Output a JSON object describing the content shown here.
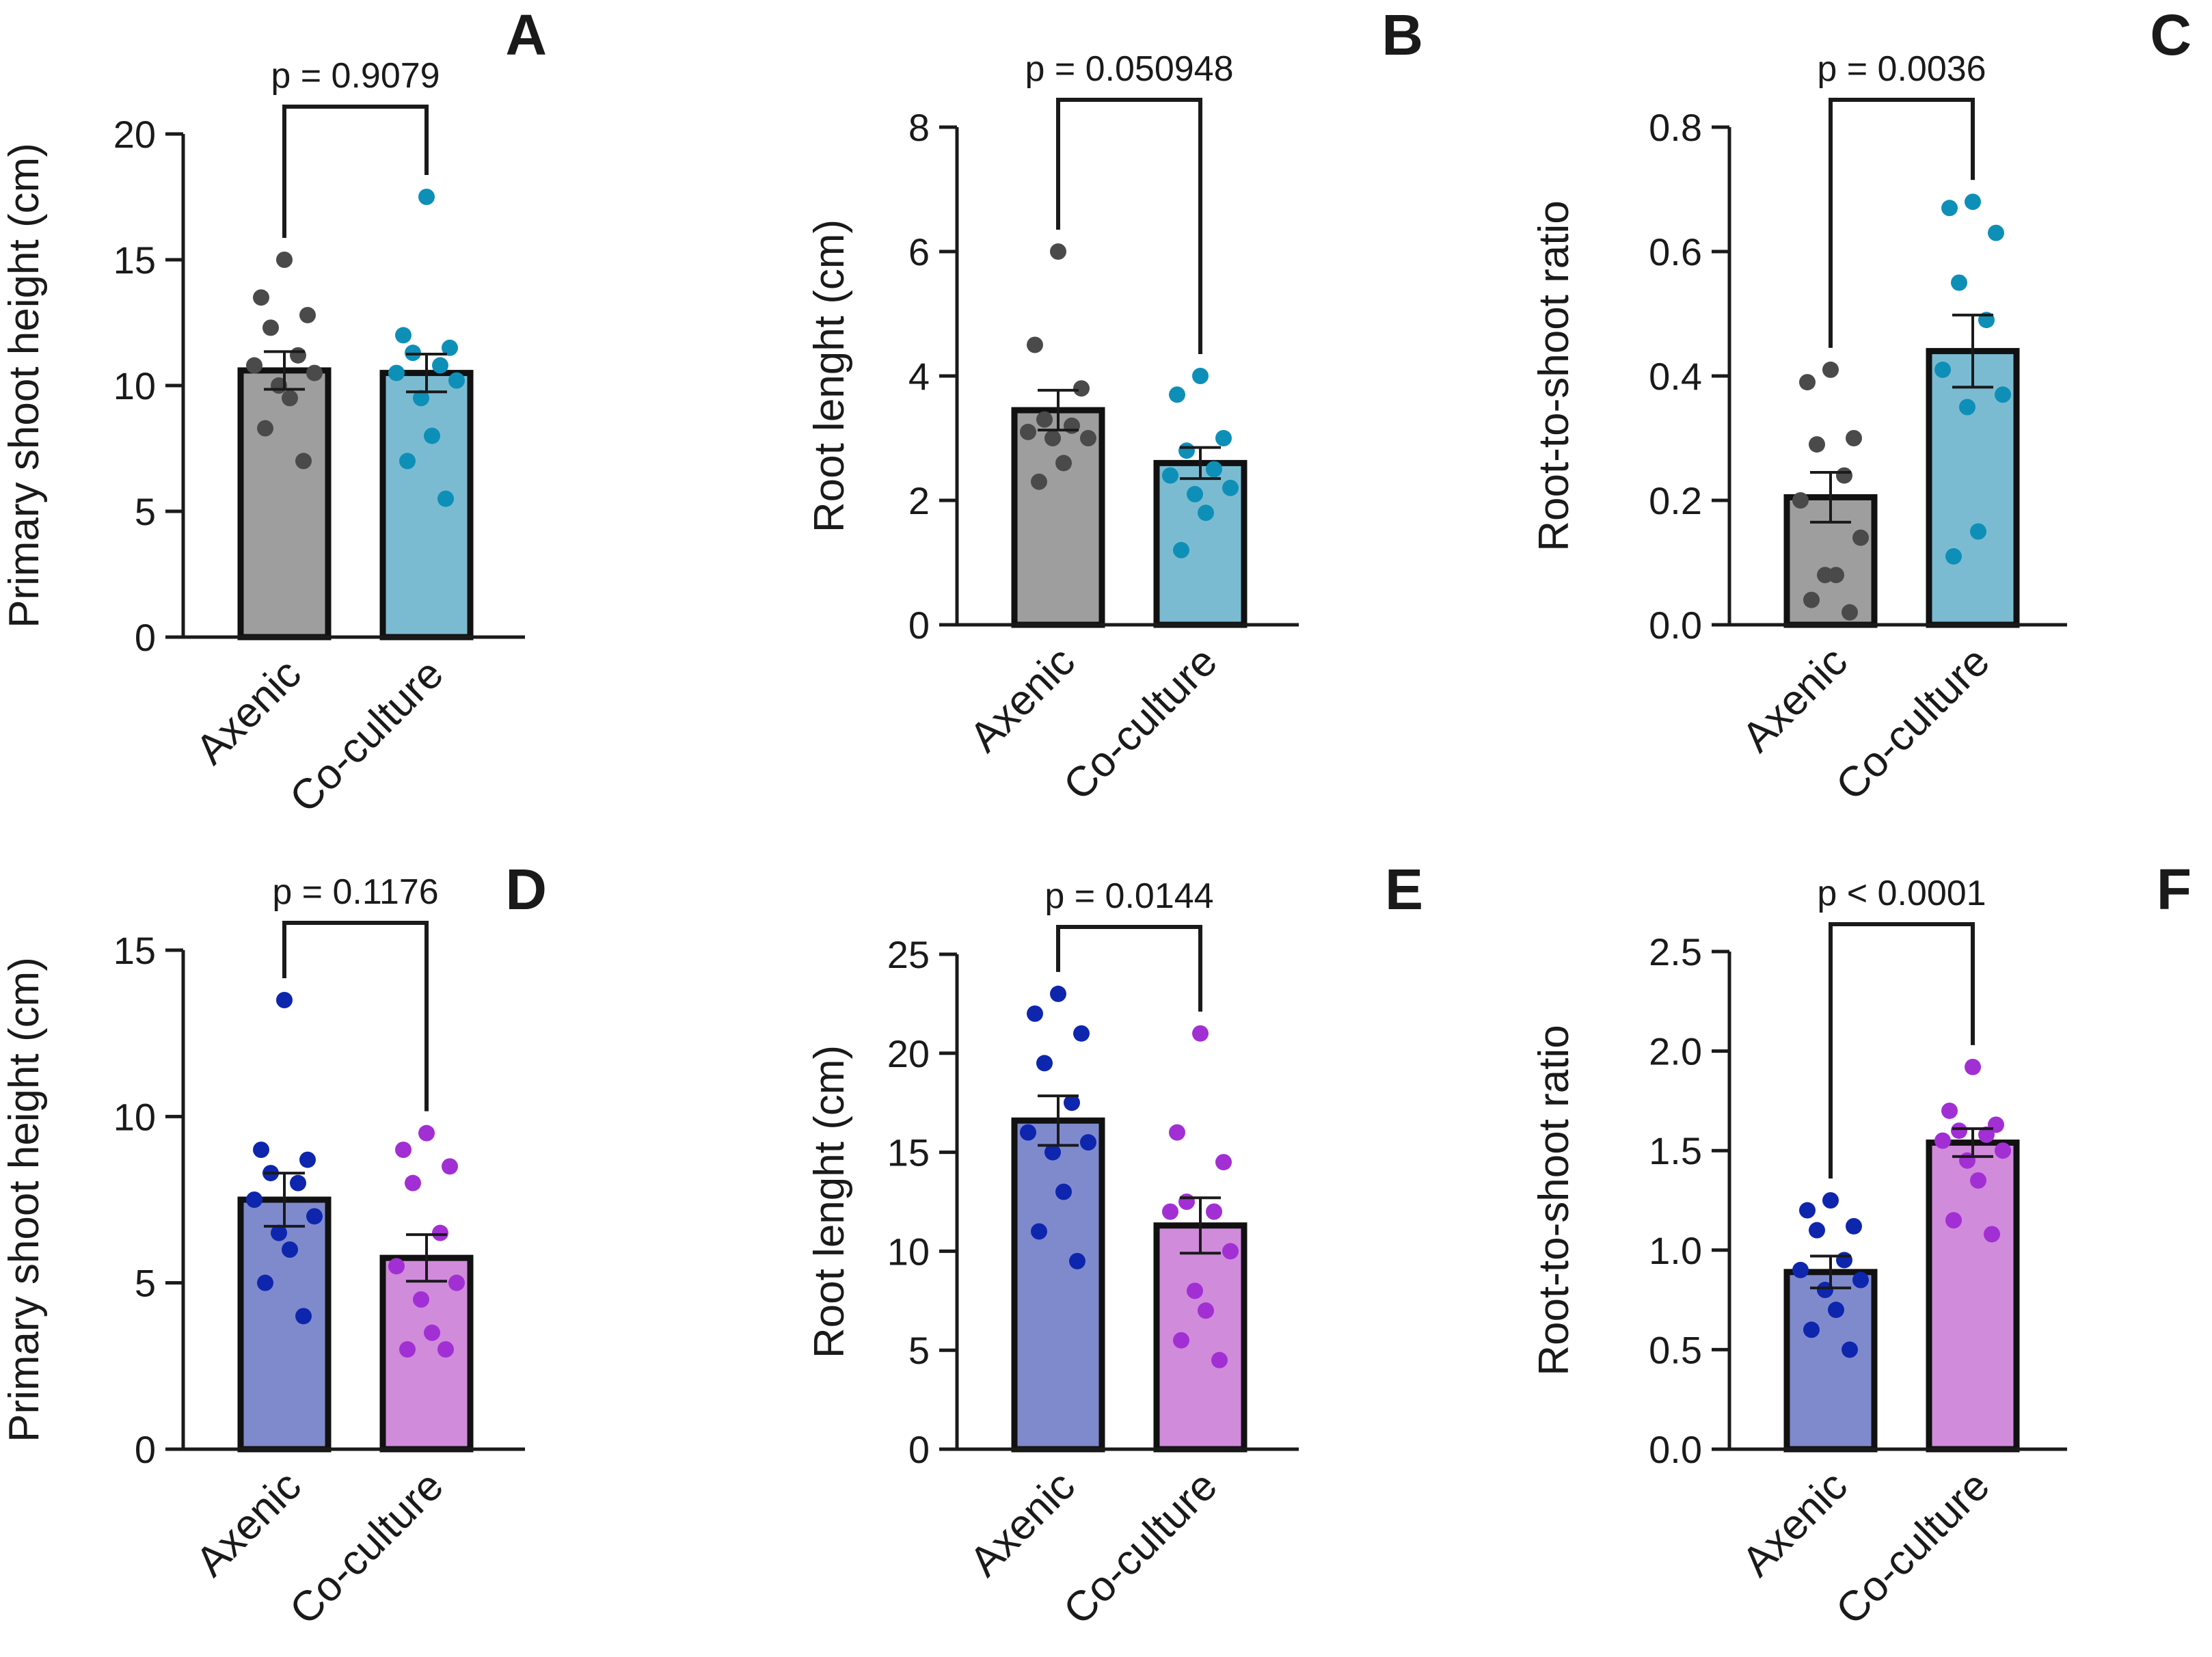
{
  "chart_data": [
    {
      "type": "bar",
      "panel_label": "A",
      "title": "",
      "xlabel": "",
      "ylabel": "Primary shoot height (cm)",
      "ylim": [
        0,
        20
      ],
      "yticks": [
        0,
        5,
        10,
        15,
        20
      ],
      "ytick_labels": [
        "0",
        "5",
        "10",
        "15",
        "20"
      ],
      "categories": [
        "Axenic",
        "Co-culture"
      ],
      "values": [
        10.6,
        10.5
      ],
      "sem": [
        0.75,
        0.75
      ],
      "colors": [
        "#9e9e9e",
        "#7bbbd2"
      ],
      "point_colors": [
        "#4a4a4a",
        "#0e8fb8"
      ],
      "points": [
        [
          15.0,
          13.5,
          12.8,
          12.3,
          11.2,
          10.8,
          10.5,
          10.0,
          9.5,
          8.3,
          7.0
        ],
        [
          17.5,
          12.0,
          11.5,
          11.3,
          10.8,
          10.5,
          10.2,
          9.5,
          8.0,
          7.0,
          5.5
        ]
      ],
      "p_value": "p = 0.9079"
    },
    {
      "type": "bar",
      "panel_label": "B",
      "title": "",
      "xlabel": "",
      "ylabel": "Root lenght (cm)",
      "ylim": [
        0,
        8
      ],
      "yticks": [
        0,
        2,
        4,
        6,
        8
      ],
      "ytick_labels": [
        "0",
        "2",
        "4",
        "6",
        "8"
      ],
      "categories": [
        "Axenic",
        "Co-culture"
      ],
      "values": [
        3.45,
        2.6
      ],
      "sem": [
        0.32,
        0.25
      ],
      "colors": [
        "#9e9e9e",
        "#7bbbd2"
      ],
      "point_colors": [
        "#4a4a4a",
        "#0e8fb8"
      ],
      "points": [
        [
          6.0,
          4.5,
          3.8,
          3.3,
          3.2,
          3.1,
          3.0,
          3.0,
          2.6,
          2.3
        ],
        [
          4.0,
          3.7,
          3.0,
          2.8,
          2.5,
          2.4,
          2.2,
          2.1,
          1.8,
          1.2
        ]
      ],
      "p_value": "p = 0.050948"
    },
    {
      "type": "bar",
      "panel_label": "C",
      "title": "",
      "xlabel": "",
      "ylabel": "Root-to-shoot ratio",
      "ylim": [
        0,
        0.8
      ],
      "yticks": [
        0,
        0.2,
        0.4,
        0.6,
        0.8
      ],
      "ytick_labels": [
        "0.0",
        "0.2",
        "0.4",
        "0.6",
        "0.8"
      ],
      "categories": [
        "Axenic",
        "Co-culture"
      ],
      "values": [
        0.205,
        0.44
      ],
      "sem": [
        0.04,
        0.058
      ],
      "colors": [
        "#9e9e9e",
        "#7bbbd2"
      ],
      "point_colors": [
        "#4a4a4a",
        "#0e8fb8"
      ],
      "points": [
        [
          0.41,
          0.39,
          0.3,
          0.29,
          0.24,
          0.2,
          0.14,
          0.08,
          0.08,
          0.04,
          0.02
        ],
        [
          0.68,
          0.67,
          0.63,
          0.55,
          0.49,
          0.41,
          0.37,
          0.35,
          0.15,
          0.11
        ]
      ],
      "p_value": "p = 0.0036"
    },
    {
      "type": "bar",
      "panel_label": "D",
      "title": "",
      "xlabel": "",
      "ylabel": "Primary shoot height (cm)",
      "ylim": [
        0,
        15
      ],
      "yticks": [
        0,
        5,
        10,
        15
      ],
      "ytick_labels": [
        "0",
        "5",
        "10",
        "15"
      ],
      "categories": [
        "Axenic",
        "Co-culture"
      ],
      "values": [
        7.5,
        5.75
      ],
      "sem": [
        0.8,
        0.7
      ],
      "colors": [
        "#7f8acd",
        "#d08bdb"
      ],
      "point_colors": [
        "#0e26ad",
        "#a22fd3"
      ],
      "points": [
        [
          13.5,
          9.0,
          8.7,
          8.3,
          8.0,
          7.5,
          7.0,
          6.5,
          6.0,
          5.0,
          4.0
        ],
        [
          9.5,
          9.0,
          8.5,
          8.0,
          6.5,
          5.5,
          5.0,
          4.5,
          3.5,
          3.0,
          3.0
        ]
      ],
      "p_value": "p = 0.1176"
    },
    {
      "type": "bar",
      "panel_label": "E",
      "title": "",
      "xlabel": "",
      "ylabel": "Root lenght (cm)",
      "ylim": [
        0,
        25
      ],
      "yticks": [
        0,
        5,
        10,
        15,
        20,
        25
      ],
      "ytick_labels": [
        "0",
        "5",
        "10",
        "15",
        "20",
        "25"
      ],
      "categories": [
        "Axenic",
        "Co-culture"
      ],
      "values": [
        16.6,
        11.3
      ],
      "sem": [
        1.25,
        1.4
      ],
      "colors": [
        "#7f8acd",
        "#d08bdb"
      ],
      "point_colors": [
        "#0e26ad",
        "#a22fd3"
      ],
      "points": [
        [
          23.0,
          22.0,
          21.0,
          19.5,
          17.5,
          16.0,
          15.5,
          15.0,
          13.0,
          11.0,
          9.5
        ],
        [
          21.0,
          16.0,
          14.5,
          12.5,
          12.0,
          12.0,
          10.0,
          8.0,
          7.0,
          5.5,
          4.5
        ]
      ],
      "p_value": "p = 0.0144"
    },
    {
      "type": "bar",
      "panel_label": "F",
      "title": "",
      "xlabel": "",
      "ylabel": "Root-to-shoot ratio",
      "ylim": [
        0,
        2.5
      ],
      "yticks": [
        0,
        0.5,
        1.0,
        1.5,
        2.0,
        2.5
      ],
      "ytick_labels": [
        "0.0",
        "0.5",
        "1.0",
        "1.5",
        "2.0",
        "2.5"
      ],
      "categories": [
        "Axenic",
        "Co-culture"
      ],
      "values": [
        0.89,
        1.54
      ],
      "sem": [
        0.08,
        0.07
      ],
      "colors": [
        "#7f8acd",
        "#d08bdb"
      ],
      "point_colors": [
        "#0e26ad",
        "#a22fd3"
      ],
      "points": [
        [
          1.25,
          1.2,
          1.12,
          1.1,
          0.95,
          0.9,
          0.85,
          0.8,
          0.7,
          0.6,
          0.5
        ],
        [
          1.92,
          1.7,
          1.63,
          1.6,
          1.58,
          1.55,
          1.5,
          1.45,
          1.35,
          1.15,
          1.08
        ]
      ],
      "p_value": "p < 0.0001"
    }
  ]
}
